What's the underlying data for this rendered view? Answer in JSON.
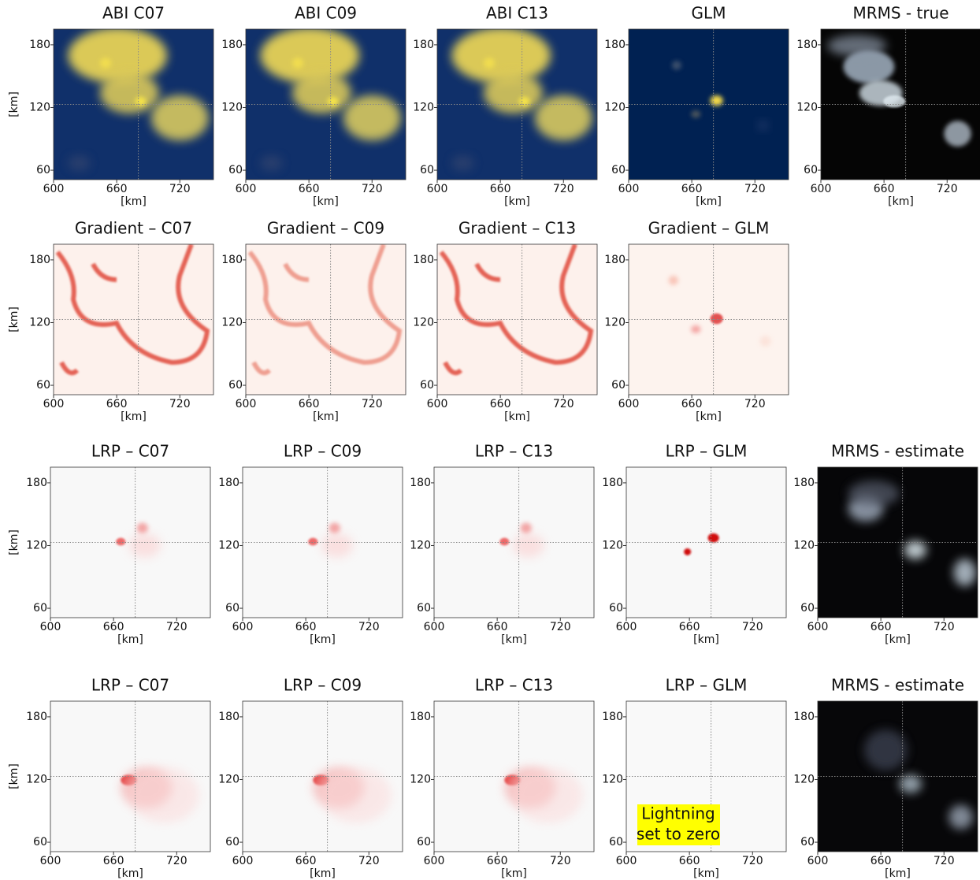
{
  "chart_data": [
    {
      "type": "image",
      "title": "ABI C07",
      "colormap": "cividis",
      "xlim": [
        600,
        752
      ],
      "ylim": [
        51,
        195
      ],
      "xticks": [
        600,
        660,
        720
      ],
      "yticks": [
        60,
        120,
        180
      ],
      "xlabel": "[km]",
      "ylabel": "[km]"
    },
    {
      "type": "image",
      "title": "ABI C09",
      "colormap": "cividis",
      "xlim": [
        600,
        752
      ],
      "ylim": [
        51,
        195
      ],
      "xticks": [
        600,
        660,
        720
      ],
      "yticks": [
        60,
        120,
        180
      ],
      "xlabel": "[km]"
    },
    {
      "type": "image",
      "title": "ABI C13",
      "colormap": "cividis",
      "xlim": [
        600,
        752
      ],
      "ylim": [
        51,
        195
      ],
      "xticks": [
        600,
        660,
        720
      ],
      "yticks": [
        60,
        120,
        180
      ],
      "xlabel": "[km]"
    },
    {
      "type": "image",
      "title": "GLM",
      "colormap": "cividis-dark",
      "xlim": [
        600,
        752
      ],
      "ylim": [
        51,
        195
      ],
      "xticks": [
        600,
        660,
        720
      ],
      "yticks": [
        60,
        120,
        180
      ],
      "xlabel": "[km]"
    },
    {
      "type": "image",
      "title": "MRMS - true",
      "colormap": "bone",
      "xlim": [
        600,
        752
      ],
      "ylim": [
        51,
        195
      ],
      "xticks": [
        600,
        660,
        720
      ],
      "yticks": [
        60,
        120,
        180
      ],
      "xlabel": "[km]"
    },
    {
      "type": "image",
      "title": "Gradient – C07",
      "colormap": "reds",
      "xlim": [
        600,
        752
      ],
      "ylim": [
        51,
        195
      ],
      "xticks": [
        600,
        660,
        720
      ],
      "yticks": [
        60,
        120,
        180
      ],
      "xlabel": "[km]",
      "ylabel": "[km]"
    },
    {
      "type": "image",
      "title": "Gradient – C09",
      "colormap": "reds",
      "xlim": [
        600,
        752
      ],
      "ylim": [
        51,
        195
      ],
      "xticks": [
        600,
        660,
        720
      ],
      "yticks": [
        60,
        120,
        180
      ],
      "xlabel": "[km]"
    },
    {
      "type": "image",
      "title": "Gradient – C13",
      "colormap": "reds",
      "xlim": [
        600,
        752
      ],
      "ylim": [
        51,
        195
      ],
      "xticks": [
        600,
        660,
        720
      ],
      "yticks": [
        60,
        120,
        180
      ],
      "xlabel": "[km]"
    },
    {
      "type": "image",
      "title": "Gradient – GLM",
      "colormap": "reds-spot",
      "xlim": [
        600,
        752
      ],
      "ylim": [
        51,
        195
      ],
      "xticks": [
        600,
        660,
        720
      ],
      "yticks": [
        60,
        120,
        180
      ],
      "xlabel": "[km]"
    },
    {
      "type": "image",
      "title": "LRP – C07",
      "colormap": "lrp",
      "xlim": [
        600,
        752
      ],
      "ylim": [
        51,
        195
      ],
      "xticks": [
        600,
        660,
        720
      ],
      "yticks": [
        60,
        120,
        180
      ],
      "xlabel": "[km]",
      "ylabel": "[km]"
    },
    {
      "type": "image",
      "title": "LRP – C09",
      "colormap": "lrp",
      "xlim": [
        600,
        752
      ],
      "ylim": [
        51,
        195
      ],
      "xticks": [
        600,
        660,
        720
      ],
      "yticks": [
        60,
        120,
        180
      ],
      "xlabel": "[km]"
    },
    {
      "type": "image",
      "title": "LRP – C13",
      "colormap": "lrp",
      "xlim": [
        600,
        752
      ],
      "ylim": [
        51,
        195
      ],
      "xticks": [
        600,
        660,
        720
      ],
      "yticks": [
        60,
        120,
        180
      ],
      "xlabel": "[km]"
    },
    {
      "type": "image",
      "title": "LRP – GLM",
      "colormap": "lrp-glm",
      "xlim": [
        600,
        752
      ],
      "ylim": [
        51,
        195
      ],
      "xticks": [
        600,
        660,
        720
      ],
      "yticks": [
        60,
        120,
        180
      ],
      "xlabel": "[km]"
    },
    {
      "type": "image",
      "title": "MRMS - estimate",
      "colormap": "bone-smooth",
      "xlim": [
        600,
        752
      ],
      "ylim": [
        51,
        195
      ],
      "xticks": [
        600,
        660,
        720
      ],
      "yticks": [
        60,
        120,
        180
      ],
      "xlabel": "[km]"
    },
    {
      "type": "image",
      "title": "LRP – C07",
      "colormap": "lrp-wide",
      "xlim": [
        600,
        752
      ],
      "ylim": [
        51,
        195
      ],
      "xticks": [
        600,
        660,
        720
      ],
      "yticks": [
        60,
        120,
        180
      ],
      "xlabel": "[km]",
      "ylabel": "[km]"
    },
    {
      "type": "image",
      "title": "LRP – C09",
      "colormap": "lrp-wide",
      "xlim": [
        600,
        752
      ],
      "ylim": [
        51,
        195
      ],
      "xticks": [
        600,
        660,
        720
      ],
      "yticks": [
        60,
        120,
        180
      ],
      "xlabel": "[km]"
    },
    {
      "type": "image",
      "title": "LRP – C13",
      "colormap": "lrp-wide",
      "xlim": [
        600,
        752
      ],
      "ylim": [
        51,
        195
      ],
      "xticks": [
        600,
        660,
        720
      ],
      "yticks": [
        60,
        120,
        180
      ],
      "xlabel": "[km]"
    },
    {
      "type": "image",
      "title": "LRP – GLM",
      "colormap": "blank",
      "xlim": [
        600,
        752
      ],
      "ylim": [
        51,
        195
      ],
      "xticks": [
        600,
        660,
        720
      ],
      "yticks": [
        60,
        120,
        180
      ],
      "xlabel": "[km]",
      "annotation": [
        "Lightning",
        "set to zero"
      ]
    },
    {
      "type": "image",
      "title": "MRMS - estimate",
      "colormap": "bone-smooth2",
      "xlim": [
        600,
        752
      ],
      "ylim": [
        51,
        195
      ],
      "xticks": [
        600,
        660,
        720
      ],
      "yticks": [
        60,
        120,
        180
      ],
      "xlabel": "[km]"
    }
  ]
}
